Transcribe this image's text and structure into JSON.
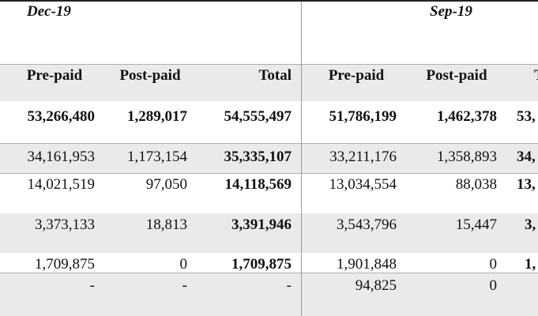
{
  "periods": [
    "Dec-19",
    "Sep-19"
  ],
  "columns": [
    "Pre-paid",
    "Post-paid",
    "Total",
    "Pre-paid",
    "Post-paid",
    "T"
  ],
  "rows": [
    {
      "cells": [
        "53,266,480",
        "1,289,017",
        "54,555,497",
        "51,786,199",
        "1,462,378",
        "53,"
      ]
    },
    {
      "cells": [
        "34,161,953",
        "1,173,154",
        "35,335,107",
        "33,211,176",
        "1,358,893",
        "34,"
      ]
    },
    {
      "cells": [
        "14,021,519",
        "97,050",
        "14,118,569",
        "13,034,554",
        "88,038",
        "13,"
      ]
    },
    {
      "cells": [
        "3,373,133",
        "18,813",
        "3,391,946",
        "3,543,796",
        "15,447",
        "3,"
      ]
    },
    {
      "cells": [
        "1,709,875",
        "0",
        "1,709,875",
        "1,901,848",
        "0",
        "1,"
      ]
    },
    {
      "cells": [
        "-",
        "-",
        "-",
        "94,825",
        "0",
        ""
      ]
    }
  ]
}
